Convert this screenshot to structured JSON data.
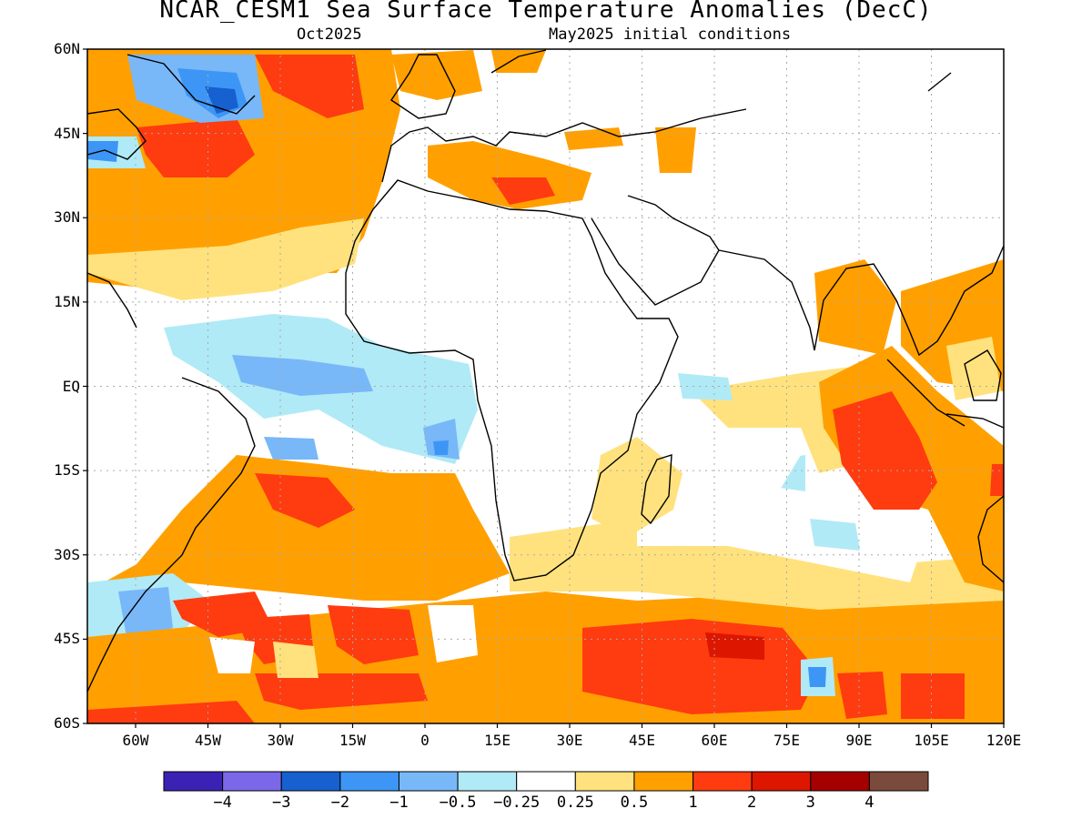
{
  "title": "NCAR_CESM1 Sea Surface Temperature Anomalies (DecC)",
  "subtitle_left": "Oct2025",
  "subtitle_right": "May2025 initial conditions",
  "lat_labels": [
    "60N",
    "45N",
    "30N",
    "15N",
    "EQ",
    "15S",
    "30S",
    "45S",
    "60S"
  ],
  "lon_labels": [
    "60W",
    "45W",
    "30W",
    "15W",
    "0",
    "15E",
    "30E",
    "45E",
    "60E",
    "75E",
    "90E",
    "105E",
    "120E"
  ],
  "map_extent": {
    "lon_min": -70,
    "lon_max": 120,
    "lat_min": -60,
    "lat_max": 60
  },
  "colorbar": {
    "colors": [
      "#3b22b4",
      "#7b68e8",
      "#1760d0",
      "#3d96f5",
      "#78b8f8",
      "#b0eaf6",
      "#ffffff",
      "#ffe27e",
      "#ffa000",
      "#ff3b10",
      "#dd1600",
      "#a50000",
      "#7a4b3c"
    ],
    "labels": [
      "−4",
      "−3",
      "−2",
      "−1",
      "−0.5",
      "−0.25",
      "0.25",
      "0.5",
      "1",
      "2",
      "3",
      "4"
    ]
  },
  "chart_data": {
    "type": "heatmap",
    "title": "NCAR_CESM1 Sea Surface Temperature Anomalies (DecC)",
    "subtitle": [
      "Oct2025",
      "May2025 initial conditions"
    ],
    "xlabel": "",
    "ylabel": "",
    "xlim": [
      -70,
      120
    ],
    "ylim": [
      -60,
      60
    ],
    "grid": true,
    "contour_levels": [
      -4,
      -3,
      -2,
      -1,
      -0.5,
      -0.25,
      0.25,
      0.5,
      1,
      2,
      3,
      4
    ],
    "anomaly_regions": [
      {
        "lon": -30,
        "lat": 27,
        "value": 0.8
      },
      {
        "lon": -46,
        "lat": 42,
        "value": 1.8
      },
      {
        "lon": -40,
        "lat": 52,
        "value": -2.5
      },
      {
        "lon": -10,
        "lat": 52,
        "value": 1.5
      },
      {
        "lon": -65,
        "lat": 43,
        "value": -1
      },
      {
        "lon": -30,
        "lat": 2,
        "value": -1
      },
      {
        "lon": -25,
        "lat": -10,
        "value": -0.8
      },
      {
        "lon": 5,
        "lat": -11,
        "value": -1.2
      },
      {
        "lon": -5,
        "lat": 3,
        "value": -0.4
      },
      {
        "lon": -55,
        "lat": 17,
        "value": -0.3
      },
      {
        "lon": 100,
        "lat": 20,
        "value": 0.8
      },
      {
        "lon": 95,
        "lat": -8,
        "value": 1.8
      },
      {
        "lon": 102,
        "lat": -25,
        "value": 1.3
      },
      {
        "lon": 60,
        "lat": -50,
        "value": 2.2
      },
      {
        "lon": 65,
        "lat": -48,
        "value": 3
      },
      {
        "lon": 80,
        "lat": -55,
        "value": 2
      },
      {
        "lon": -10,
        "lat": -47,
        "value": 2
      },
      {
        "lon": -45,
        "lat": -42,
        "value": 2
      },
      {
        "lon": -30,
        "lat": -20,
        "value": 1.2
      },
      {
        "lon": 0,
        "lat": -30,
        "value": 0.9
      },
      {
        "lon": 40,
        "lat": -35,
        "value": 0.8
      },
      {
        "lon": 85,
        "lat": -35,
        "value": 0.3
      },
      {
        "lon": 80,
        "lat": -5,
        "value": 0.2
      },
      {
        "lon": 80,
        "lat": -50,
        "value": -1
      },
      {
        "lon": -60,
        "lat": -42,
        "value": -1
      },
      {
        "lon": 20,
        "lat": 40,
        "value": 0.9
      },
      {
        "lon": 58,
        "lat": -20,
        "value": 0.1
      }
    ]
  }
}
